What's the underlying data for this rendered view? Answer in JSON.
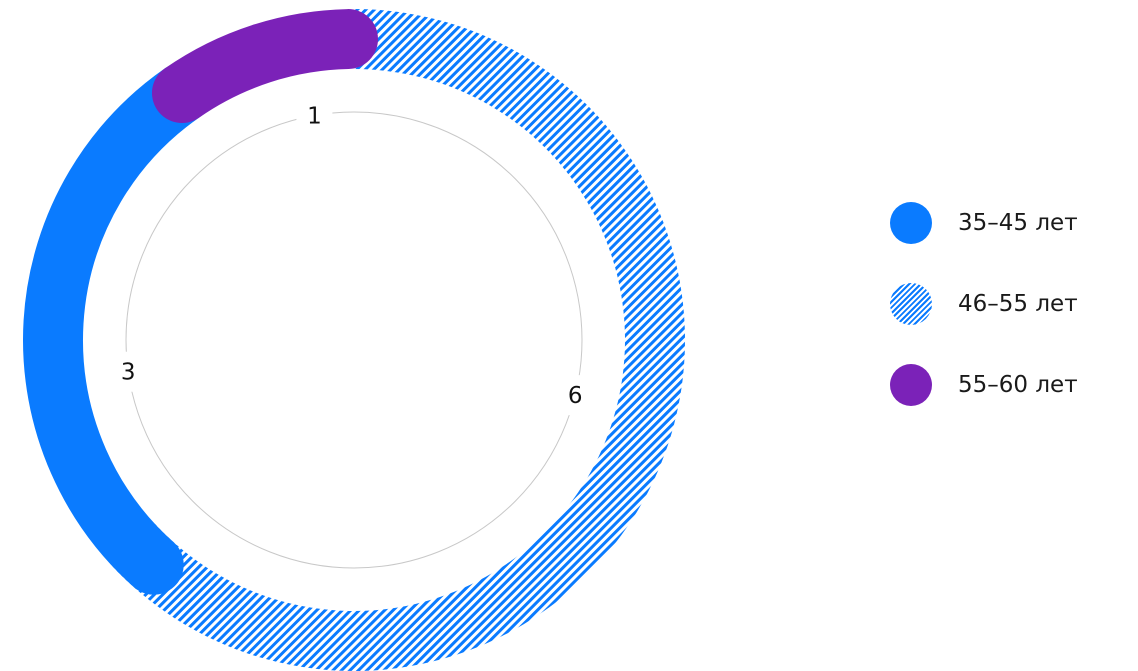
{
  "chart_data": {
    "type": "pie",
    "title": "",
    "variant": "donut",
    "categories": [
      "35–45 лет",
      "46–55 лет",
      "55–60 лет"
    ],
    "values": [
      3,
      6,
      1
    ],
    "colors": [
      "#0A7BFF",
      "#0A7BFF",
      "#7B22B8"
    ],
    "fills": [
      "solid",
      "hatched",
      "solid"
    ],
    "data_labels": [
      "3",
      "6",
      "1"
    ],
    "legend": "right"
  }
}
